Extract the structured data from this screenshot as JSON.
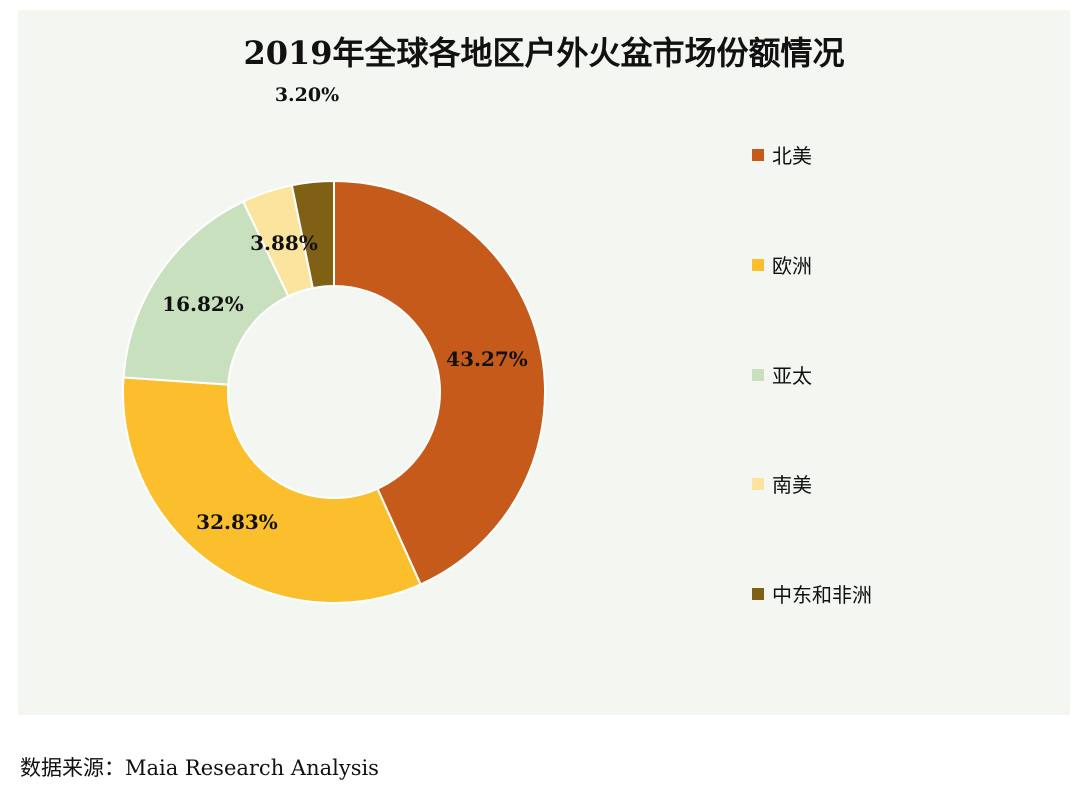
{
  "chart_data": {
    "type": "pie",
    "donut": true,
    "title": "2019年全球各地区户外火盆市场份额情况",
    "categories": [
      "北美",
      "欧洲",
      "亚太",
      "南美",
      "中东和非洲"
    ],
    "values": [
      43.27,
      32.83,
      16.82,
      3.88,
      3.2
    ],
    "labels": [
      "43.27%",
      "32.83%",
      "16.82%",
      "3.88%",
      "3.20%"
    ],
    "colors": [
      "#c55a1a",
      "#fbbf2d",
      "#c8e0bd",
      "#fbe49e",
      "#7f6014"
    ],
    "legend_position": "right",
    "source": "数据来源：Maia Research Analysis"
  }
}
